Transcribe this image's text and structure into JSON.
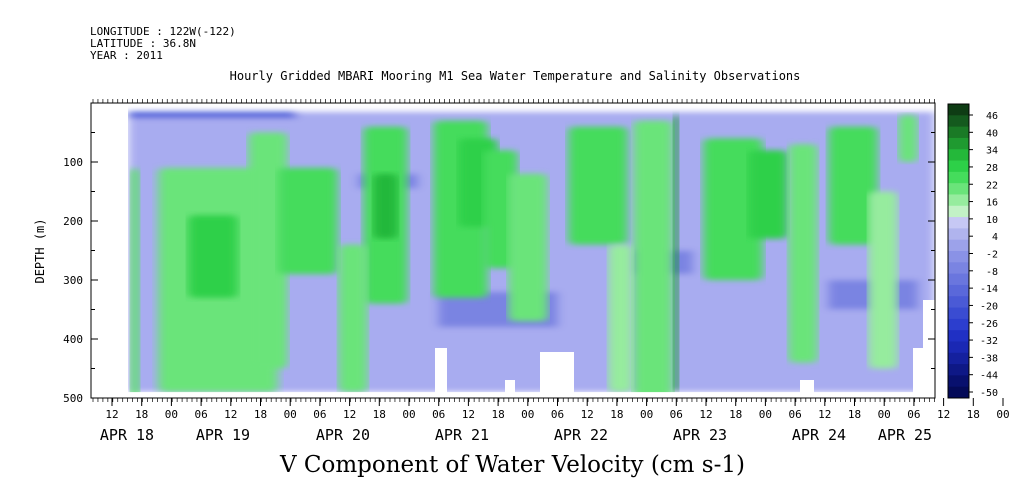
{
  "header": {
    "longitude": "LONGITUDE : 122W(-122)",
    "latitude": "LATITUDE : 36.8N",
    "year": "YEAR : 2011"
  },
  "chart_data": {
    "type": "heatmap",
    "title": "Hourly Gridded MBARI Mooring M1 Sea Water Temperature and Salinity Observations",
    "xlabel": "V Component of Water Velocity (cm s-1)",
    "ylabel": "DEPTH (m)",
    "units": "cm s-1",
    "y_axis": {
      "range": [
        500,
        0
      ],
      "inverted": true,
      "ticks": [
        100,
        200,
        300,
        400,
        500
      ]
    },
    "x_axis": {
      "hour_ticks": [
        "12",
        "18",
        "00",
        "06",
        "12",
        "18",
        "00",
        "06",
        "12",
        "18",
        "00",
        "06",
        "12",
        "18",
        "00",
        "06",
        "12",
        "18",
        "00",
        "06",
        "12",
        "18",
        "00",
        "06",
        "12",
        "18",
        "00",
        "06",
        "12",
        "18",
        "00",
        "06"
      ],
      "date_labels": [
        "APR 18",
        "APR 19",
        "APR 20",
        "APR 21",
        "APR 22",
        "APR 23",
        "APR 24",
        "APR 25"
      ]
    },
    "colorbar": {
      "labels": [
        "46",
        "40",
        "34",
        "28",
        "22",
        "16",
        "10",
        "4",
        "-2",
        "-8",
        "-14",
        "-20",
        "-26",
        "-32",
        "-38",
        "-44",
        "-50"
      ],
      "colors": [
        "#0e3c14",
        "#145a1e",
        "#1a7a26",
        "#1f9a30",
        "#24b83a",
        "#2dd048",
        "#45dc5c",
        "#6ae47a",
        "#96ec9e",
        "#c2f2c6",
        "#c6c8f4",
        "#b0b4ee",
        "#9ca2ea",
        "#8a92e6",
        "#7a84e2",
        "#6a76de",
        "#5a68da",
        "#4a5ad6",
        "#3a4cd2",
        "#2c3ece",
        "#2030c4",
        "#1a28b4",
        "#14209e",
        "#0e1886",
        "#08106e",
        "#040a58"
      ]
    },
    "legend_placement": "right",
    "colors": {
      "positive": "#2dd048",
      "negative": "#9ca2ea",
      "missing": "#ffffff"
    }
  }
}
